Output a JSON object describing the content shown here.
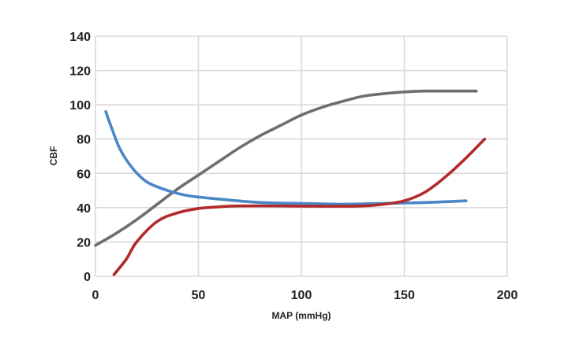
{
  "chart_data": {
    "type": "line",
    "title": "",
    "xlabel": "MAP (mmHg)",
    "ylabel": "CBF",
    "xlim": [
      0,
      200
    ],
    "ylim": [
      0,
      140
    ],
    "x_ticks": [
      0,
      50,
      100,
      150,
      200
    ],
    "y_ticks": [
      0,
      20,
      40,
      60,
      80,
      100,
      120,
      140
    ],
    "grid": true,
    "legend": "none",
    "series": [
      {
        "name": "gray",
        "color": "#6e6e6e",
        "x": [
          0,
          10,
          20,
          30,
          40,
          50,
          60,
          70,
          80,
          90,
          100,
          110,
          120,
          130,
          140,
          150,
          160,
          170,
          185
        ],
        "y": [
          18,
          25,
          33,
          42,
          51,
          59,
          67,
          75,
          82,
          88,
          94,
          98.5,
          102,
          105,
          106.5,
          107.5,
          108,
          108,
          108
        ]
      },
      {
        "name": "blue",
        "color": "#4a86c6",
        "x": [
          5,
          8,
          12,
          18,
          25,
          35,
          45,
          60,
          80,
          100,
          120,
          140,
          160,
          180
        ],
        "y": [
          96,
          86,
          74,
          63,
          55,
          50,
          47,
          45,
          43,
          42.5,
          42,
          42.5,
          43,
          44
        ]
      },
      {
        "name": "red",
        "color": "#b22a2a",
        "x": [
          9,
          15,
          20,
          30,
          40,
          50,
          60,
          70,
          90,
          110,
          130,
          140,
          150,
          160,
          170,
          180,
          189
        ],
        "y": [
          1,
          10,
          20,
          32,
          37,
          39.5,
          40.5,
          41,
          41,
          40.8,
          41,
          42,
          44,
          49,
          58,
          69,
          80
        ]
      }
    ]
  }
}
